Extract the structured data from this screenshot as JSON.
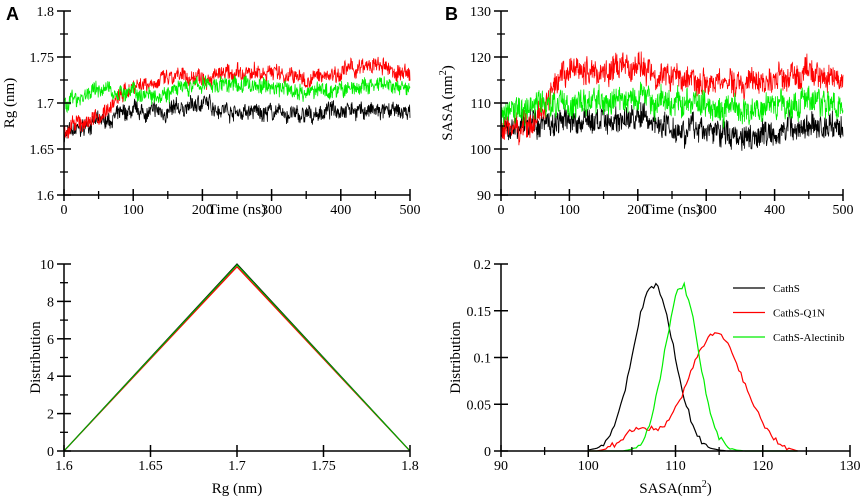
{
  "chart_data": [
    {
      "id": "A-top",
      "panel_letter": "A",
      "type": "line",
      "xlabel": "Time (ns)",
      "ylabel": "Rg (nm)",
      "xlim": [
        0,
        500
      ],
      "ylim": [
        1.6,
        1.8
      ],
      "xticks": [
        0,
        100,
        200,
        300,
        400,
        500
      ],
      "xtick_labels": [
        "0",
        "100",
        "200",
        "300",
        "400",
        "500"
      ],
      "yticks": [
        1.6,
        1.65,
        1.7,
        1.75,
        1.8
      ],
      "ytick_labels": [
        "1.6",
        "1.65",
        "1.7",
        "1.75",
        "1.8"
      ],
      "x": [
        0,
        50,
        100,
        150,
        200,
        250,
        300,
        350,
        400,
        450,
        500
      ],
      "series": [
        {
          "name": "CathS",
          "color": "#000000",
          "values": [
            1.665,
            1.68,
            1.69,
            1.69,
            1.7,
            1.69,
            1.69,
            1.685,
            1.695,
            1.69,
            1.69
          ],
          "noise": 0.011
        },
        {
          "name": "CathS-Q1N",
          "color": "#ff0000",
          "values": [
            1.67,
            1.685,
            1.72,
            1.725,
            1.73,
            1.73,
            1.735,
            1.725,
            1.735,
            1.74,
            1.73
          ],
          "noise": 0.011
        },
        {
          "name": "CathS-Alectinib",
          "color": "#00ee00",
          "values": [
            1.7,
            1.715,
            1.71,
            1.712,
            1.72,
            1.72,
            1.718,
            1.712,
            1.715,
            1.718,
            1.715
          ],
          "noise": 0.011
        }
      ]
    },
    {
      "id": "B-top",
      "panel_letter": "B",
      "type": "line",
      "xlabel": "Time (ns)",
      "ylabel": "SASA (nm",
      "ylabel_sup": "2",
      "ylabel_end": ")",
      "xlim": [
        0,
        500
      ],
      "ylim": [
        90,
        130
      ],
      "xticks": [
        0,
        100,
        200,
        300,
        400,
        500
      ],
      "xtick_labels": [
        "0",
        "100",
        "200",
        "300",
        "400",
        "500"
      ],
      "yticks": [
        90,
        100,
        110,
        120,
        130
      ],
      "ytick_labels": [
        "90",
        "100",
        "110",
        "120",
        "130"
      ],
      "x": [
        0,
        50,
        100,
        150,
        200,
        250,
        300,
        350,
        400,
        450,
        500
      ],
      "series": [
        {
          "name": "CathS",
          "color": "#000000",
          "values": [
            104,
            106,
            106,
            106,
            107,
            105,
            104,
            103,
            104,
            105,
            105
          ],
          "noise": 3.5
        },
        {
          "name": "CathS-Q1N",
          "color": "#ff0000",
          "values": [
            104,
            106,
            117,
            117,
            118,
            116,
            115,
            114,
            115,
            116,
            116
          ],
          "noise": 3.5
        },
        {
          "name": "CathS-Alectinib",
          "color": "#00ee00",
          "values": [
            107,
            110,
            110,
            110,
            111,
            110,
            110,
            108,
            110,
            110,
            110
          ],
          "noise": 3.5
        }
      ]
    },
    {
      "id": "A-bottom",
      "type": "line",
      "xlabel": "Rg (nm)",
      "ylabel": "Distribution",
      "xlim": [
        1.6,
        1.8
      ],
      "ylim": [
        0,
        10
      ],
      "xticks": [
        1.6,
        1.65,
        1.7,
        1.75,
        1.8
      ],
      "xtick_labels": [
        "1.6",
        "1.65",
        "1.7",
        "1.75",
        "1.8"
      ],
      "yticks": [
        0,
        2,
        4,
        6,
        8,
        10
      ],
      "ytick_labels": [
        "0",
        "2",
        "4",
        "6",
        "8",
        "10"
      ],
      "x": [
        1.6,
        1.7,
        1.8
      ],
      "series": [
        {
          "name": "CathS",
          "color": "#000000",
          "values": [
            0,
            10,
            0
          ]
        },
        {
          "name": "CathS-Q1N",
          "color": "#ff0000",
          "values": [
            0,
            9.85,
            0
          ]
        },
        {
          "name": "CathS-Alectinib",
          "color": "#00aa00",
          "values": [
            0,
            9.95,
            0
          ]
        }
      ]
    },
    {
      "id": "B-bottom",
      "type": "line",
      "xlabel": "SASA(nm",
      "xlabel_sup": "2",
      "xlabel_end": ")",
      "ylabel": "Distribution",
      "xlim": [
        90,
        130
      ],
      "ylim": [
        0,
        0.2
      ],
      "xticks": [
        90,
        100,
        110,
        120,
        130
      ],
      "xtick_labels": [
        "90",
        "100",
        "110",
        "120",
        "130"
      ],
      "yticks": [
        0,
        0.05,
        0.1,
        0.15,
        0.2
      ],
      "ytick_labels": [
        "0",
        "0.05",
        "0.1",
        "0.15",
        "0.2"
      ],
      "legend_position": "top-right",
      "x": [
        100,
        101,
        102,
        103,
        104,
        105,
        106,
        107,
        108,
        109,
        110,
        111,
        112,
        113,
        114,
        115,
        116,
        117,
        118,
        119,
        120,
        121,
        122,
        123,
        124
      ],
      "series": [
        {
          "name": "CathS",
          "color": "#000000",
          "values": [
            0.001,
            0.003,
            0.01,
            0.027,
            0.057,
            0.1,
            0.146,
            0.176,
            0.176,
            0.146,
            0.1,
            0.057,
            0.027,
            0.01,
            0.003,
            0.001,
            0,
            0,
            0,
            0,
            0,
            0,
            0,
            0,
            0
          ]
        },
        {
          "name": "CathS-Q1N",
          "color": "#ff0000",
          "values": [
            0,
            0,
            0.002,
            0.007,
            0.015,
            0.022,
            0.027,
            0.024,
            0.022,
            0.03,
            0.045,
            0.065,
            0.09,
            0.11,
            0.125,
            0.125,
            0.115,
            0.095,
            0.07,
            0.05,
            0.03,
            0.017,
            0.008,
            0.003,
            0
          ]
        },
        {
          "name": "CathS-Alectinib",
          "color": "#00ee00",
          "values": [
            0,
            0,
            0,
            0,
            0,
            0.002,
            0.008,
            0.027,
            0.066,
            0.12,
            0.168,
            0.178,
            0.142,
            0.087,
            0.04,
            0.014,
            0.004,
            0.001,
            0,
            0,
            0,
            0,
            0,
            0,
            0
          ]
        }
      ]
    }
  ]
}
